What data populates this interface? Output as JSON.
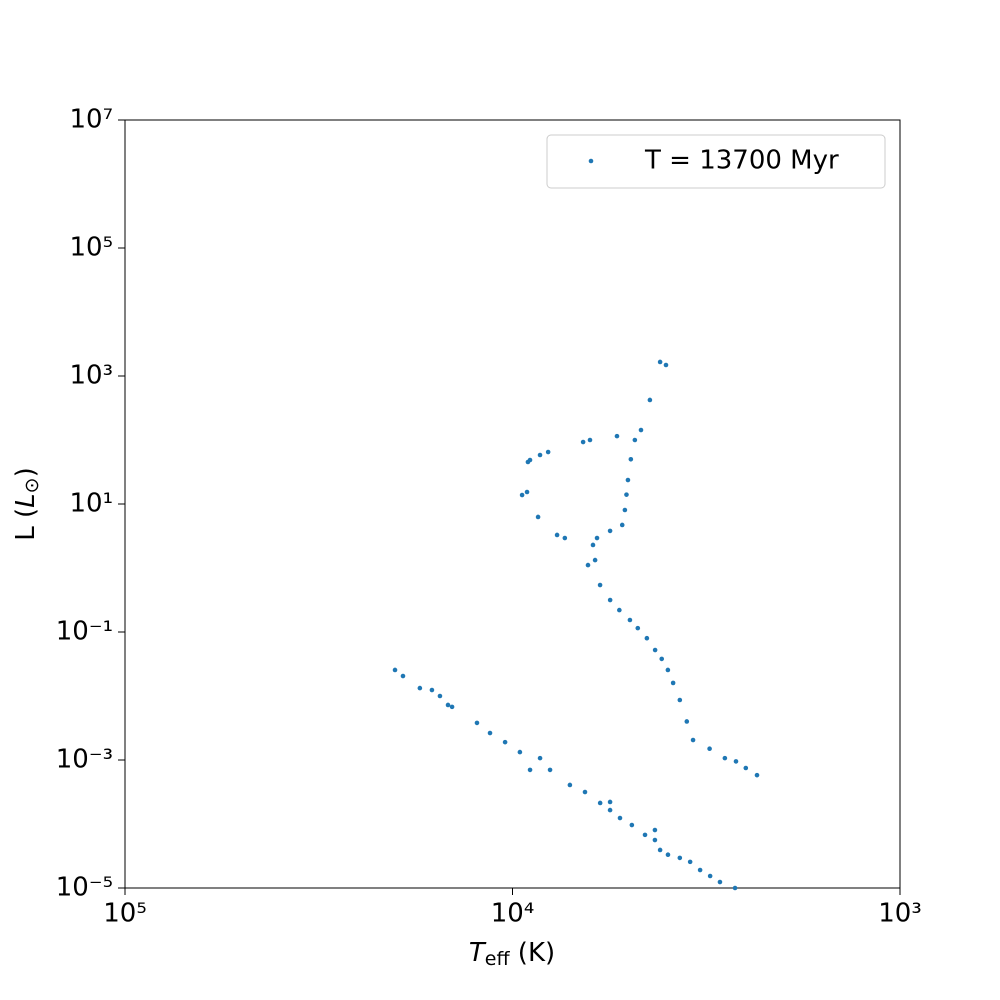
{
  "chart_data": {
    "type": "scatter",
    "xlabel": {
      "text": "T",
      "sub": "eff",
      "rest": " (K)"
    },
    "ylabel": {
      "text": "L (",
      "italic": "L",
      "sub": "⊙",
      "rest": ")"
    },
    "xscale": "log",
    "yscale": "log",
    "xlim": [
      100000,
      1000
    ],
    "ylim": [
      1e-05,
      10000000
    ],
    "xticks": [
      {
        "value": 100000,
        "label": "10⁵"
      },
      {
        "value": 10000,
        "label": "10⁴"
      },
      {
        "value": 1000,
        "label": "10³"
      }
    ],
    "yticks": [
      {
        "value": 1e-05,
        "label": "10⁻⁵"
      },
      {
        "value": 0.001,
        "label": "10⁻³"
      },
      {
        "value": 0.1,
        "label": "10⁻¹"
      },
      {
        "value": 10,
        "label": "10¹"
      },
      {
        "value": 1000,
        "label": "10³"
      },
      {
        "value": 100000,
        "label": "10⁵"
      },
      {
        "value": 10000000,
        "label": "10⁷"
      }
    ],
    "legend": "upper right",
    "series": [
      {
        "name": "T = 13700 Myr",
        "color": "#1f77b4",
        "x": [
          2339,
          2500,
          2650,
          2831,
          3100,
          3420,
          3550,
          3700,
          3850,
          3972,
          4120,
          4285,
          4500,
          4750,
          4977,
          5300,
          5598,
          5943,
          6121,
          6198,
          6052,
          5600,
          5210,
          5128,
          5080,
          5036,
          4950,
          4833,
          4660,
          4420,
          4160,
          4017,
          5375,
          6310,
          6573,
          8091,
          8491,
          9011,
          9124,
          9446,
          9173,
          8590,
          7673,
          7327,
          6385,
          20100,
          19170,
          17340,
          16140,
          15390,
          14670,
          14320,
          12350,
          11430,
          10450,
          9570,
          8490,
          9010,
          8000,
          7110,
          6500,
          5940,
          5600,
          5280,
          4920,
          4550,
          4290,
          4160,
          3970,
          3700,
          3480,
          3280,
          3090,
          2915,
          2665,
          4290,
          5600
        ],
        "y": [
          0.00058,
          0.00075,
          0.00095,
          0.00107,
          0.0015,
          0.00205,
          0.004,
          0.00866,
          0.016,
          0.0255,
          0.038,
          0.0523,
          0.08,
          0.115,
          0.154,
          0.22,
          0.316,
          0.542,
          1.33,
          2.29,
          2.94,
          3.8,
          4.7,
          8.06,
          14,
          23.7,
          50,
          100,
          143,
          422,
          1656,
          1485,
          115,
          100,
          93,
          64.9,
          58.3,
          48.7,
          45.3,
          13.8,
          15.4,
          6.27,
          3.28,
          2.94,
          1.11,
          0.0255,
          0.0205,
          0.0133,
          0.0124,
          0.01,
          0.00724,
          0.00676,
          0.0038,
          0.00264,
          0.0019,
          0.00133,
          0.00107,
          0.0007,
          0.0007,
          0.000407,
          0.000316,
          0.000213,
          0.000165,
          0.000124,
          9.64e-05,
          6.76e-05,
          5.62e-05,
          3.93e-05,
          3.31e-05,
          2.95e-05,
          2.56e-05,
          1.91e-05,
          1.54e-05,
          1.24e-05,
          1e-05,
          8.05e-05,
          0.000221
        ]
      }
    ]
  }
}
